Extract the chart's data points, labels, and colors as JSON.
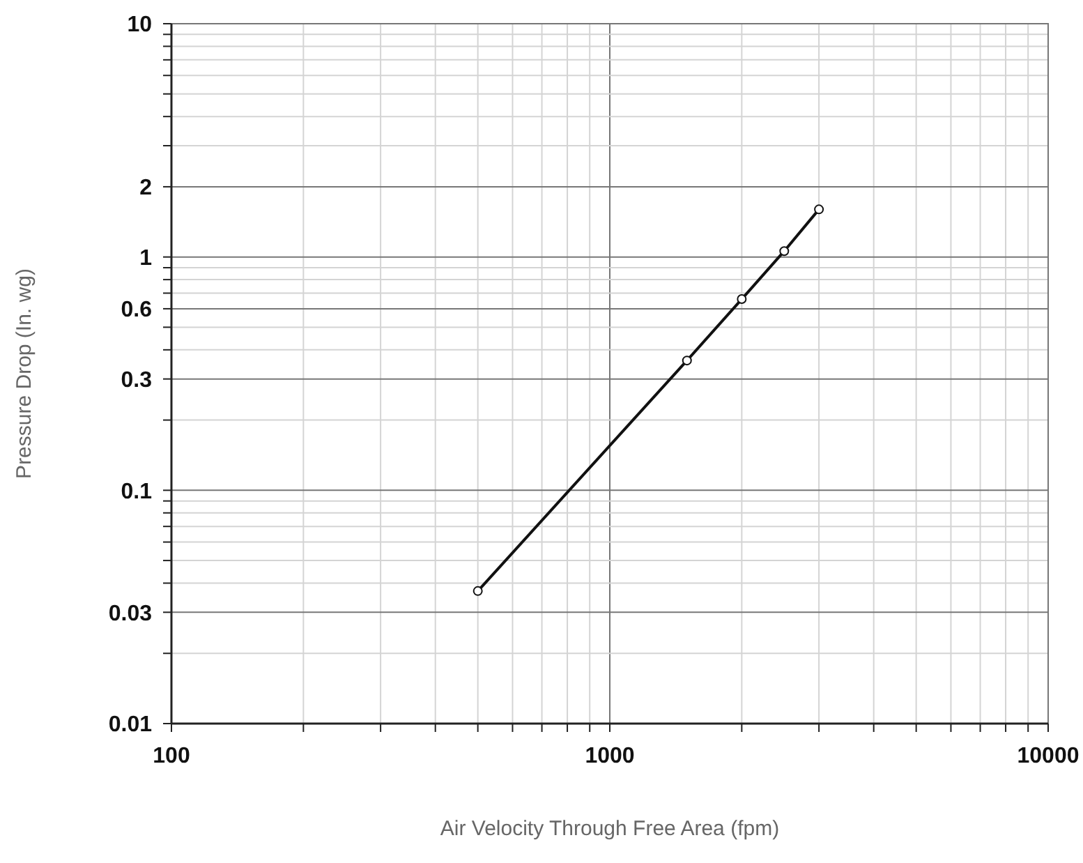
{
  "chart_data": {
    "type": "line",
    "xlabel": "Air Velocity Through Free Area (fpm)",
    "ylabel": "Pressure Drop (In. wg)",
    "x": [
      500,
      1500,
      2000,
      2500,
      3000
    ],
    "series": [
      {
        "color": "#111111",
        "values": [
          0.037,
          0.36,
          0.66,
          1.06,
          1.6
        ]
      }
    ],
    "log": "xy",
    "grid": true,
    "marker": "circle",
    "line_style": "solid",
    "xlim": [
      100,
      10000
    ],
    "ylim": [
      0.01,
      10
    ],
    "xticks": [
      100,
      {
        "value": 200,
        "label": null
      },
      {
        "value": 300,
        "label": null
      },
      {
        "value": 400,
        "label": null
      },
      {
        "value": 500,
        "label": null
      },
      {
        "value": 600,
        "label": null
      },
      {
        "value": 700,
        "label": null
      },
      {
        "value": 800,
        "label": null
      },
      {
        "value": 900,
        "label": null
      },
      1000,
      {
        "value": 2000,
        "label": null
      },
      {
        "value": 3000,
        "label": null
      },
      {
        "value": 4000,
        "label": null
      },
      {
        "value": 5000,
        "label": null
      },
      {
        "value": 6000,
        "label": null
      },
      {
        "value": 7000,
        "label": null
      },
      {
        "value": 8000,
        "label": null
      },
      {
        "value": 9000,
        "label": null
      },
      10000
    ],
    "yticks": [
      0.01,
      {
        "value": 0.02,
        "label": null
      },
      0.03,
      {
        "value": 0.04,
        "label": null
      },
      {
        "value": 0.05,
        "label": null
      },
      {
        "value": 0.06,
        "label": null
      },
      {
        "value": 0.07,
        "label": null
      },
      {
        "value": 0.08,
        "label": null
      },
      {
        "value": 0.09,
        "label": null
      },
      0.1,
      {
        "value": 0.2,
        "label": null
      },
      0.3,
      {
        "value": 0.4,
        "label": null
      },
      {
        "value": 0.5,
        "label": null
      },
      0.6,
      {
        "value": 0.7,
        "label": null
      },
      {
        "value": 0.8,
        "label": null
      },
      {
        "value": 0.9,
        "label": null
      },
      1,
      2,
      {
        "value": 3,
        "label": null
      },
      {
        "value": 4,
        "label": null
      },
      {
        "value": 5,
        "label": null
      },
      {
        "value": 6,
        "label": null
      },
      {
        "value": 7,
        "label": null
      },
      {
        "value": 8,
        "label": null
      },
      {
        "value": 9,
        "label": null
      },
      10
    ]
  }
}
